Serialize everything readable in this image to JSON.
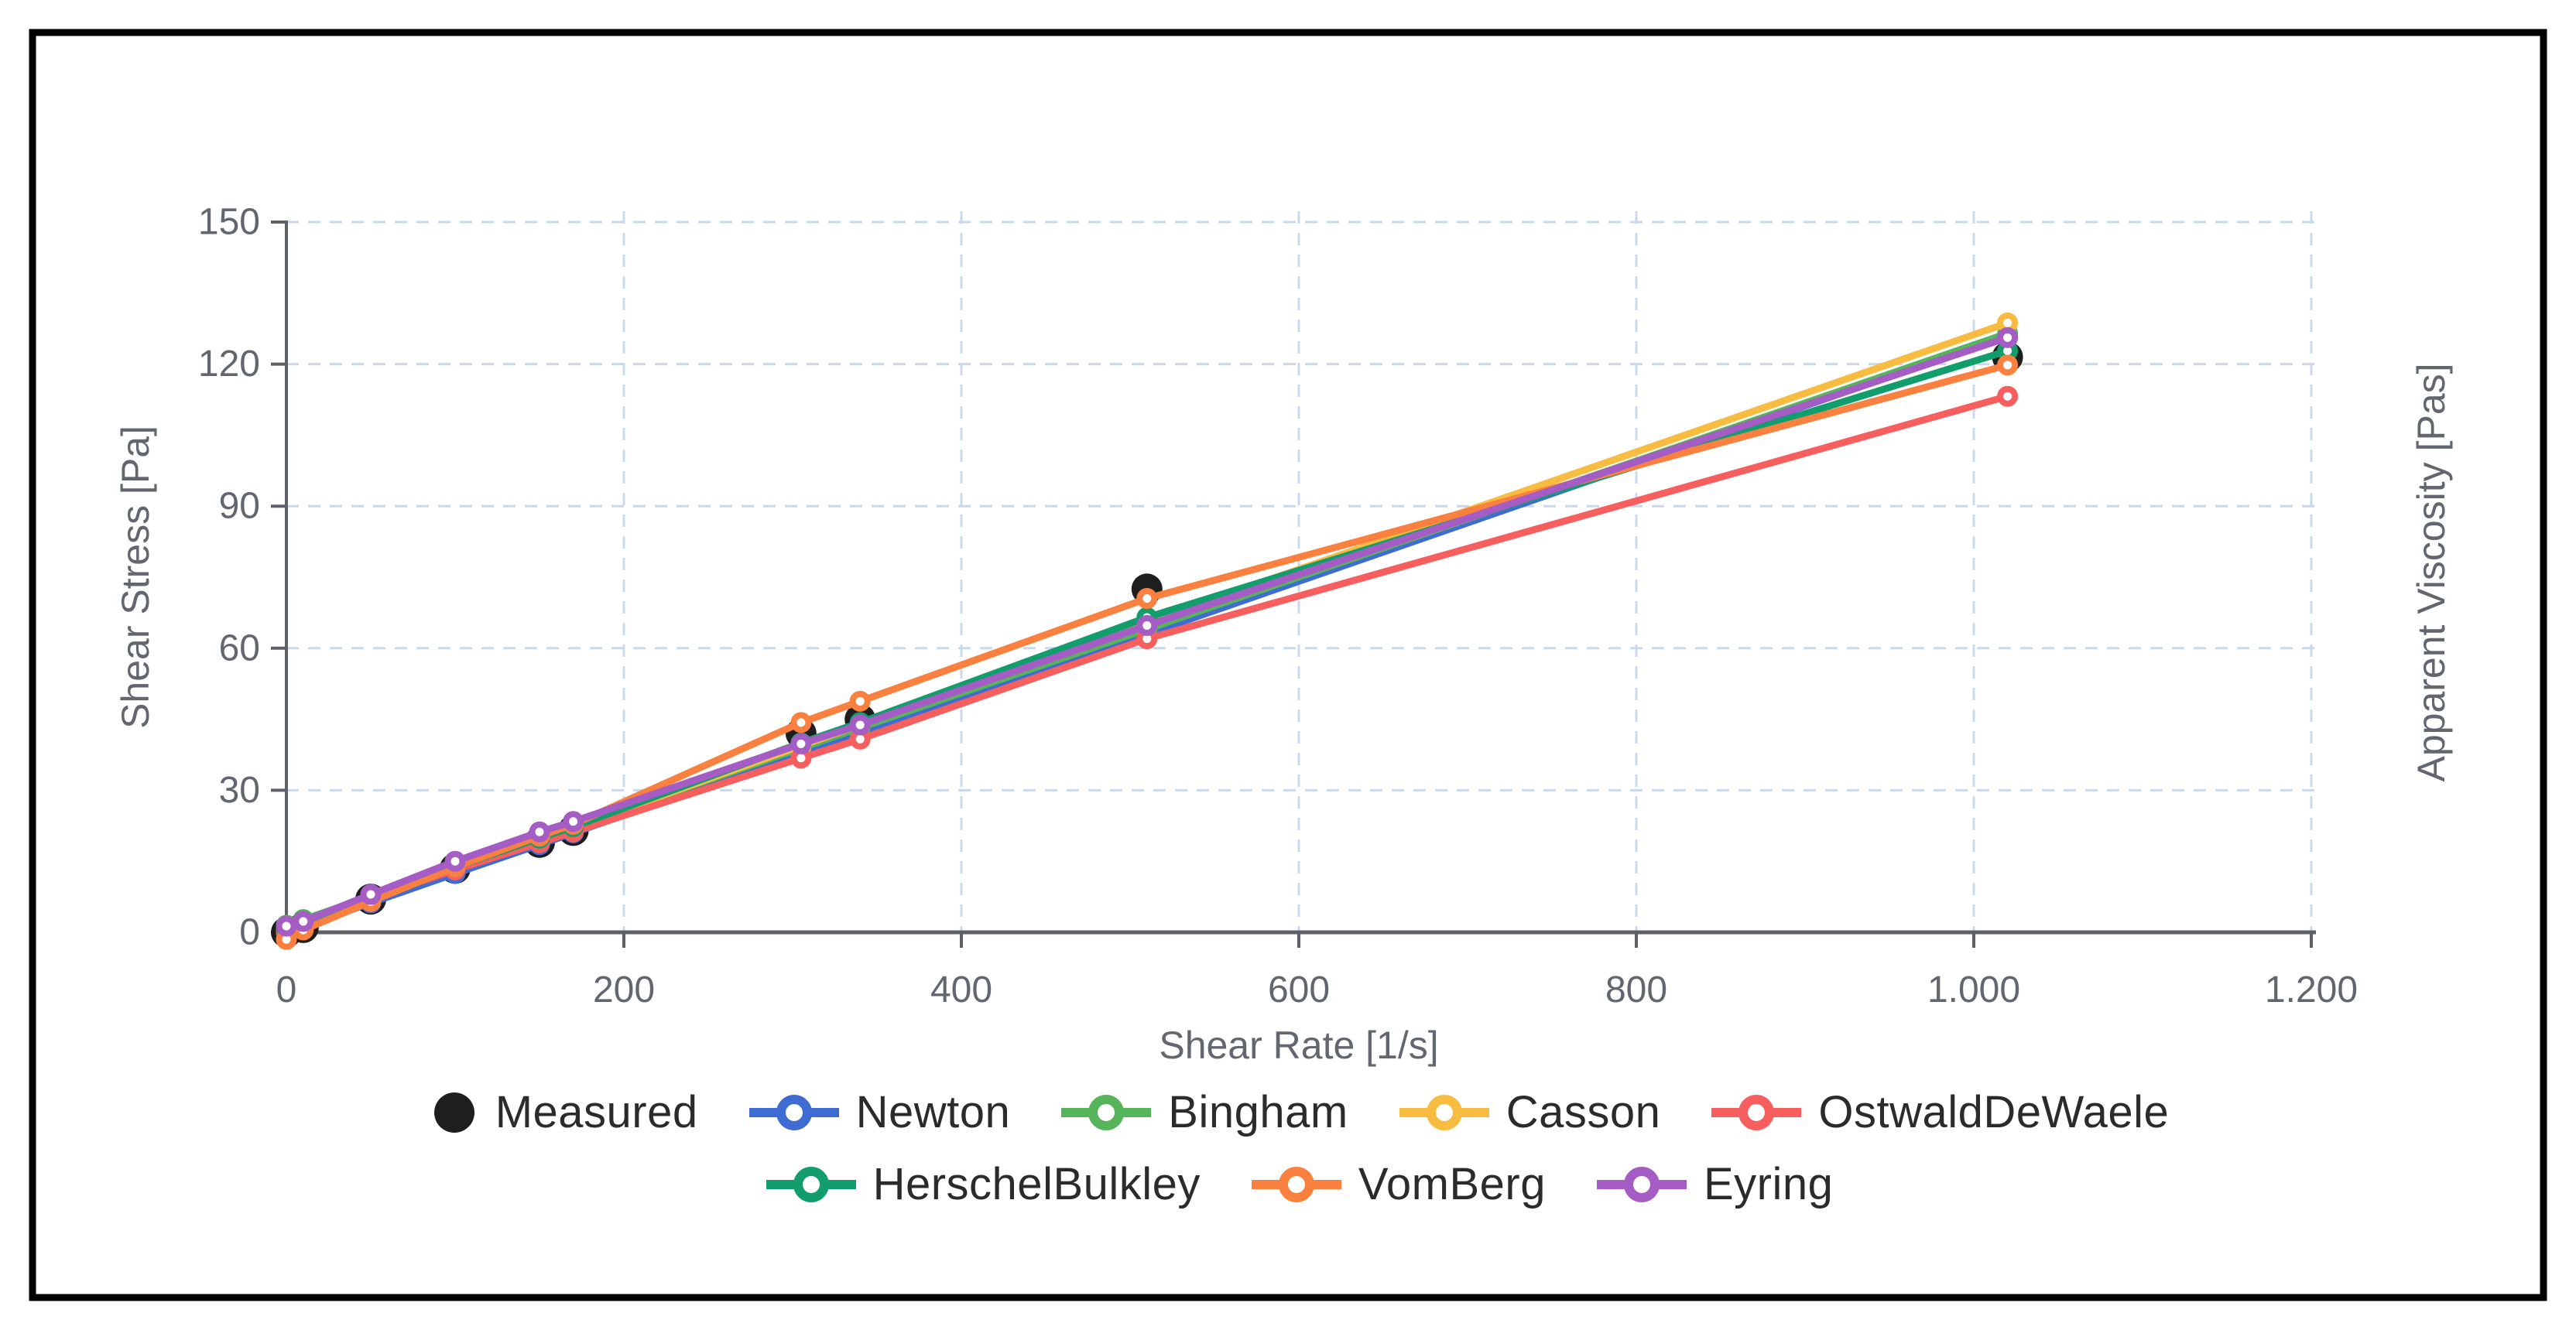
{
  "figure": {
    "background": "#ffffff",
    "border_color": "#000000"
  },
  "colors": {
    "axis": "#5d6167",
    "tick_text": "#62666e",
    "axis_title_text": "#62666e",
    "grid": "#c9d8ec",
    "legend_text": "#2b2b2b"
  },
  "chart_data": {
    "type": "line",
    "title": "",
    "xlabel": "Shear Rate [1/s]",
    "ylabel_left": "Shear Stress [Pa]",
    "ylabel_right": "Apparent Viscosity [Pas]",
    "xlim": [
      0,
      1200
    ],
    "ylim": [
      0,
      150
    ],
    "grid_on": true,
    "x_ticks": {
      "values": [
        0,
        200,
        400,
        600,
        800,
        1000,
        1200
      ],
      "labels": [
        "0",
        "200",
        "400",
        "600",
        "800",
        "1.000",
        "1.200"
      ]
    },
    "y_ticks": {
      "values": [
        0,
        30,
        60,
        90,
        120,
        150
      ],
      "labels": [
        "0",
        "30",
        "60",
        "90",
        "120",
        "150"
      ]
    },
    "grid_x_values": [
      200,
      400,
      600,
      800,
      1000,
      1200
    ],
    "grid_y_values": [
      30,
      60,
      90,
      120,
      150
    ],
    "x": [
      0,
      10,
      50,
      100,
      150,
      170,
      305,
      340,
      510,
      1020
    ],
    "series": [
      {
        "name": "Measured",
        "color": "#1e1e1e",
        "marker": "filled-circle",
        "line": false,
        "values": [
          0,
          1,
          7,
          13.5,
          19,
          21.5,
          42,
          45,
          72.5,
          121.5
        ]
      },
      {
        "name": "Newton",
        "color": "#3e6cd3",
        "marker": "open-circle",
        "line": true,
        "values": [
          0,
          1.2,
          6.2,
          12.4,
          18.5,
          21.0,
          37.7,
          42.0,
          63.0,
          126.0
        ]
      },
      {
        "name": "Bingham",
        "color": "#56b55a",
        "marker": "open-circle",
        "line": true,
        "values": [
          1.5,
          2.7,
          7.6,
          13.7,
          19.8,
          22.3,
          38.9,
          43.2,
          64.0,
          126.5
        ]
      },
      {
        "name": "Casson",
        "color": "#f8bc40",
        "marker": "open-circle",
        "line": true,
        "values": [
          0.6,
          2.0,
          7.2,
          13.5,
          19.7,
          22.1,
          39.4,
          43.8,
          65.5,
          128.7
        ]
      },
      {
        "name": "OstwaldDeWaele",
        "color": "#f75f5f",
        "marker": "open-circle",
        "line": true,
        "values": [
          0,
          1.8,
          7.2,
          13.2,
          18.9,
          21.2,
          36.8,
          40.8,
          62.0,
          113.2
        ]
      },
      {
        "name": "HerschelBulkley",
        "color": "#129d6d",
        "marker": "open-circle",
        "line": true,
        "values": [
          1.0,
          2.3,
          7.4,
          13.8,
          19.9,
          22.3,
          40.0,
          44.3,
          66.5,
          122.8
        ]
      },
      {
        "name": "VomBerg",
        "color": "#f9803f",
        "marker": "open-circle",
        "line": true,
        "values": [
          -1.5,
          0.5,
          6.5,
          13.8,
          20.3,
          22.8,
          44.3,
          48.8,
          70.5,
          119.8
        ]
      },
      {
        "name": "Eyring",
        "color": "#a55cc4",
        "marker": "open-circle",
        "line": true,
        "values": [
          1.3,
          2.3,
          8.0,
          15.0,
          21.2,
          23.4,
          39.8,
          43.8,
          64.8,
          125.6
        ]
      }
    ],
    "legend": {
      "position": "bottom",
      "rows": [
        [
          "Measured",
          "Newton",
          "Bingham",
          "Casson",
          "OstwaldDeWaele"
        ],
        [
          "HerschelBulkley",
          "VomBerg",
          "Eyring"
        ]
      ]
    }
  }
}
